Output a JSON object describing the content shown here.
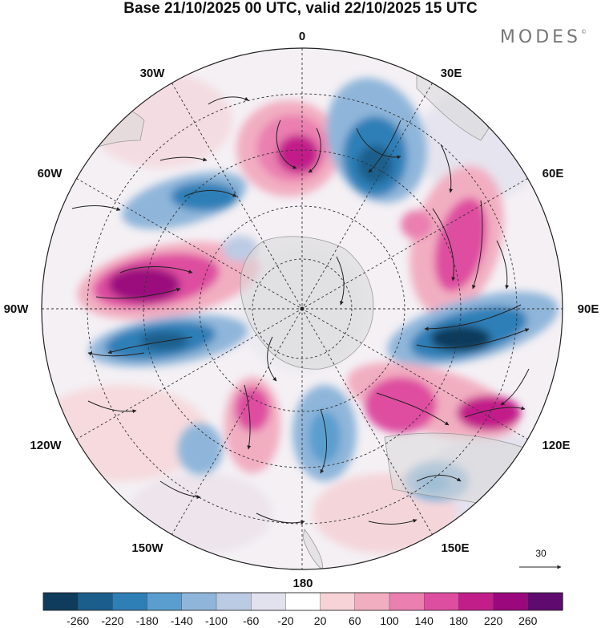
{
  "header": {
    "title": "Base 21/10/2025 00 UTC, valid 22/10/2025 15 UTC",
    "brand": "MODES",
    "brand_mark": "©"
  },
  "map": {
    "projection": "south-polar-stereographic",
    "longitude_labels": [
      "0",
      "30E",
      "60E",
      "90E",
      "120E",
      "150E",
      "180",
      "150W",
      "120W",
      "90W",
      "60W",
      "30W"
    ],
    "reference_vector": "30"
  },
  "colorbar": {
    "ticks": [
      "-260",
      "-220",
      "-180",
      "-140",
      "-100",
      "-60",
      "-20",
      "20",
      "60",
      "100",
      "140",
      "180",
      "220",
      "260"
    ],
    "colors": [
      "#0f3b5c",
      "#1b5e8c",
      "#2f7fb7",
      "#5a9ecf",
      "#8fb6da",
      "#bccbe4",
      "#e2e2ee",
      "#ffffff",
      "#f7d3d7",
      "#f2aec1",
      "#ea7fb0",
      "#de4ea0",
      "#c21e8a",
      "#9b087d",
      "#5e0a6e"
    ]
  },
  "colors": {
    "text": "#111111",
    "brand": "#777777",
    "coast": "#9a9a9a",
    "land": "#d9d9d9"
  }
}
